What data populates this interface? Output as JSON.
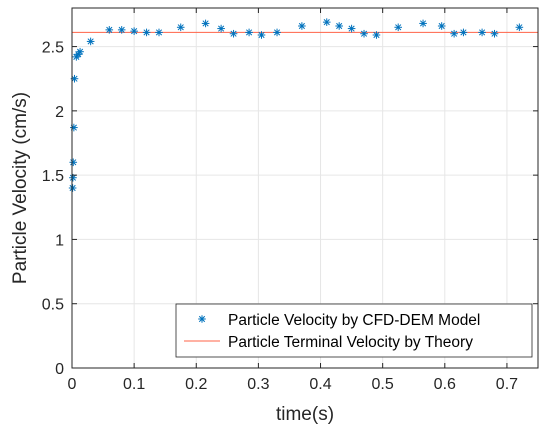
{
  "chart_data": {
    "type": "scatter",
    "xlabel": "time(s)",
    "ylabel": "Particle Velocity (cm/s)",
    "xlim": [
      0,
      0.75
    ],
    "ylim": [
      0,
      2.8
    ],
    "xticks": [
      0,
      0.1,
      0.2,
      0.3,
      0.4,
      0.5,
      0.6,
      0.7
    ],
    "xtick_labels": [
      "0",
      "0.1",
      "0.2",
      "0.3",
      "0.4",
      "0.5",
      "0.6",
      "0.7"
    ],
    "yticks": [
      0,
      0.5,
      1,
      1.5,
      2,
      2.5
    ],
    "ytick_labels": [
      "0",
      "0.5",
      "1",
      "1.5",
      "2",
      "2.5"
    ],
    "grid": true,
    "legend_position": "bottom-right",
    "series": [
      {
        "name": "Particle Velocity by CFD-DEM Model",
        "kind": "scatter",
        "marker": "asterisk",
        "color": "#0072BD",
        "x": [
          0.001,
          0.0015,
          0.002,
          0.003,
          0.004,
          0.007,
          0.01,
          0.013,
          0.03,
          0.06,
          0.08,
          0.1,
          0.12,
          0.14,
          0.175,
          0.215,
          0.24,
          0.26,
          0.285,
          0.305,
          0.33,
          0.37,
          0.41,
          0.43,
          0.45,
          0.47,
          0.49,
          0.525,
          0.565,
          0.595,
          0.615,
          0.63,
          0.66,
          0.68,
          0.72
        ],
        "y": [
          1.4,
          1.48,
          1.6,
          1.87,
          2.25,
          2.42,
          2.44,
          2.46,
          2.54,
          2.63,
          2.63,
          2.62,
          2.61,
          2.61,
          2.65,
          2.68,
          2.64,
          2.6,
          2.61,
          2.59,
          2.61,
          2.66,
          2.69,
          2.66,
          2.64,
          2.6,
          2.59,
          2.65,
          2.68,
          2.66,
          2.6,
          2.61,
          2.61,
          2.6,
          2.65
        ]
      },
      {
        "name": "Particle Terminal Velocity by Theory",
        "kind": "line",
        "color": "#FF6347",
        "x": [
          0,
          0.75
        ],
        "y": [
          2.61,
          2.61
        ]
      }
    ]
  }
}
